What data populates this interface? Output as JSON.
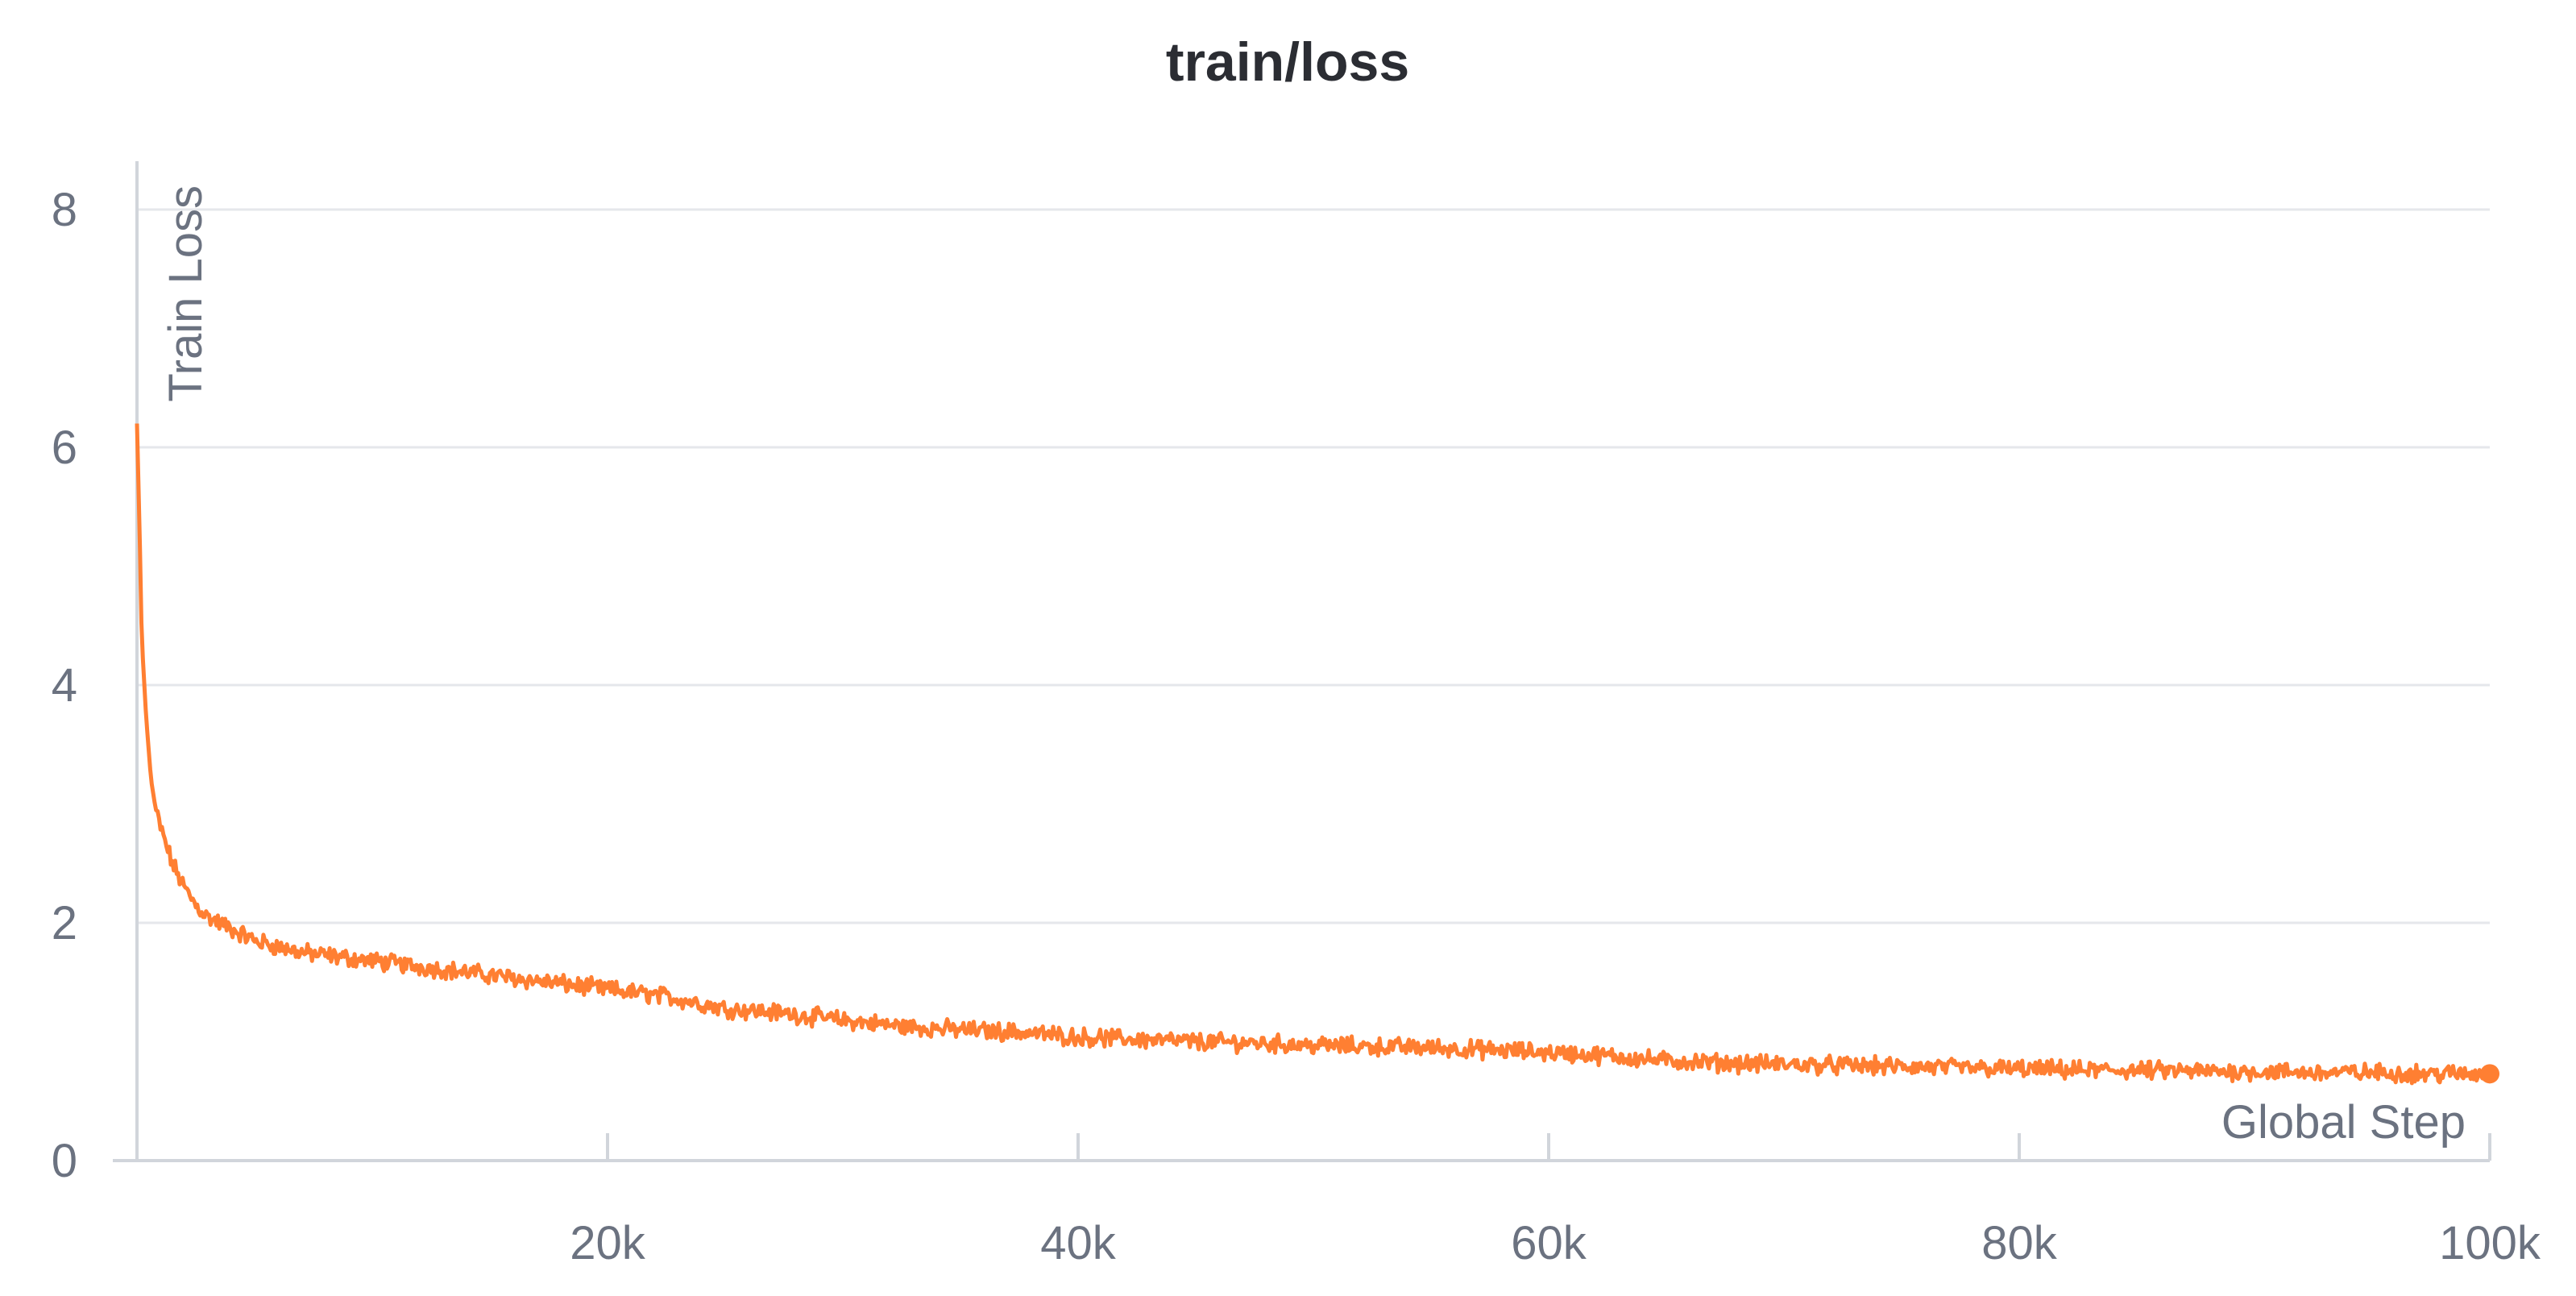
{
  "colors": {
    "series": "#ff7f32",
    "grid": "#e5e7eb",
    "axis_text": "#6b7280",
    "title_text": "#2b2d33"
  },
  "chart_data": {
    "type": "line",
    "title": "train/loss",
    "xlabel": "Global Step",
    "ylabel": "Train Loss",
    "xlim": [
      0,
      100000
    ],
    "ylim": [
      0,
      8
    ],
    "xticks": [
      20000,
      40000,
      60000,
      80000,
      100000
    ],
    "xtick_labels": [
      "20k",
      "40k",
      "60k",
      "80k",
      "100k"
    ],
    "yticks": [
      0,
      2,
      4,
      6,
      8
    ],
    "ytick_labels": [
      "0",
      "2",
      "4",
      "6",
      "8"
    ],
    "grid": true,
    "legend": "none",
    "series": [
      {
        "x": [
          0,
          100,
          200,
          400,
          600,
          800,
          1000,
          1500,
          2000,
          2500,
          3000,
          4000,
          5000,
          7000,
          10000,
          12500,
          15000,
          17500,
          20000,
          22500,
          25000,
          27500,
          30000,
          32500,
          35000,
          37500,
          40000,
          42500,
          45000,
          47500,
          50000,
          52500,
          55000,
          57500,
          60000,
          62500,
          65000,
          67500,
          70000,
          72500,
          75000,
          77500,
          80000,
          82500,
          85000,
          87500,
          90000,
          92500,
          95000,
          97500,
          100000
        ],
        "values": [
          6.2,
          5.4,
          4.4,
          3.7,
          3.2,
          2.95,
          2.8,
          2.5,
          2.3,
          2.15,
          2.05,
          1.95,
          1.85,
          1.75,
          1.68,
          1.62,
          1.56,
          1.5,
          1.44,
          1.38,
          1.28,
          1.24,
          1.18,
          1.13,
          1.1,
          1.08,
          1.04,
          1.02,
          1.0,
          0.99,
          0.97,
          0.96,
          0.95,
          0.93,
          0.91,
          0.88,
          0.84,
          0.82,
          0.81,
          0.8,
          0.79,
          0.78,
          0.77,
          0.76,
          0.76,
          0.75,
          0.75,
          0.74,
          0.74,
          0.73,
          0.73
        ]
      }
    ]
  }
}
